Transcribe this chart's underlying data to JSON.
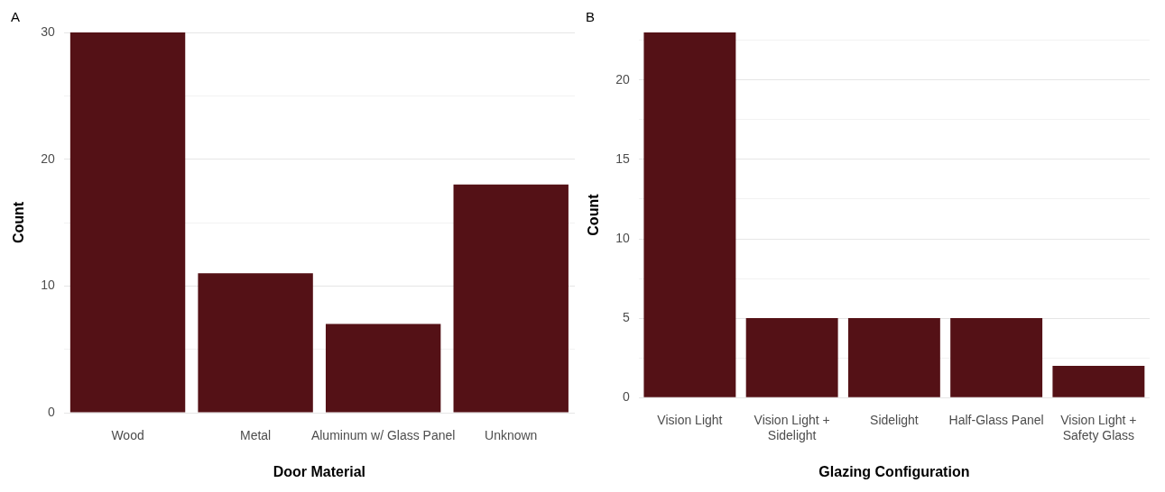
{
  "chart_data": [
    {
      "type": "bar",
      "title": "A",
      "xlabel": "Door Material",
      "ylabel": "Count",
      "categories": [
        "Wood",
        "Metal",
        "Aluminum w/ Glass Panel",
        "Unknown"
      ],
      "values": [
        30,
        11,
        7,
        18
      ],
      "color": "#541116",
      "ylim": [
        0,
        30
      ],
      "yticks": [
        0,
        {
          "value": 5,
          "label": null
        },
        10,
        {
          "value": 15,
          "label": null
        },
        20,
        {
          "value": 25,
          "label": null
        },
        30
      ],
      "grid": "y",
      "legend": false
    },
    {
      "type": "bar",
      "title": "B",
      "xlabel": "Glazing Configuration",
      "ylabel": "Count",
      "categories": [
        "Vision Light",
        "Vision Light +\nSidelight",
        "Sidelight",
        "Half-Glass Panel",
        "Vision Light +\nSafety Glass"
      ],
      "values": [
        23,
        5,
        5,
        5,
        2
      ],
      "color": "#541116",
      "ylim": [
        0,
        23
      ],
      "yticks": [
        0,
        {
          "value": 2.5,
          "label": null
        },
        5,
        {
          "value": 7.5,
          "label": null
        },
        10,
        {
          "value": 12.5,
          "label": null
        },
        15,
        {
          "value": 17.5,
          "label": null
        },
        20,
        {
          "value": 22.5,
          "label": null
        }
      ],
      "grid": "y",
      "legend": false
    }
  ]
}
